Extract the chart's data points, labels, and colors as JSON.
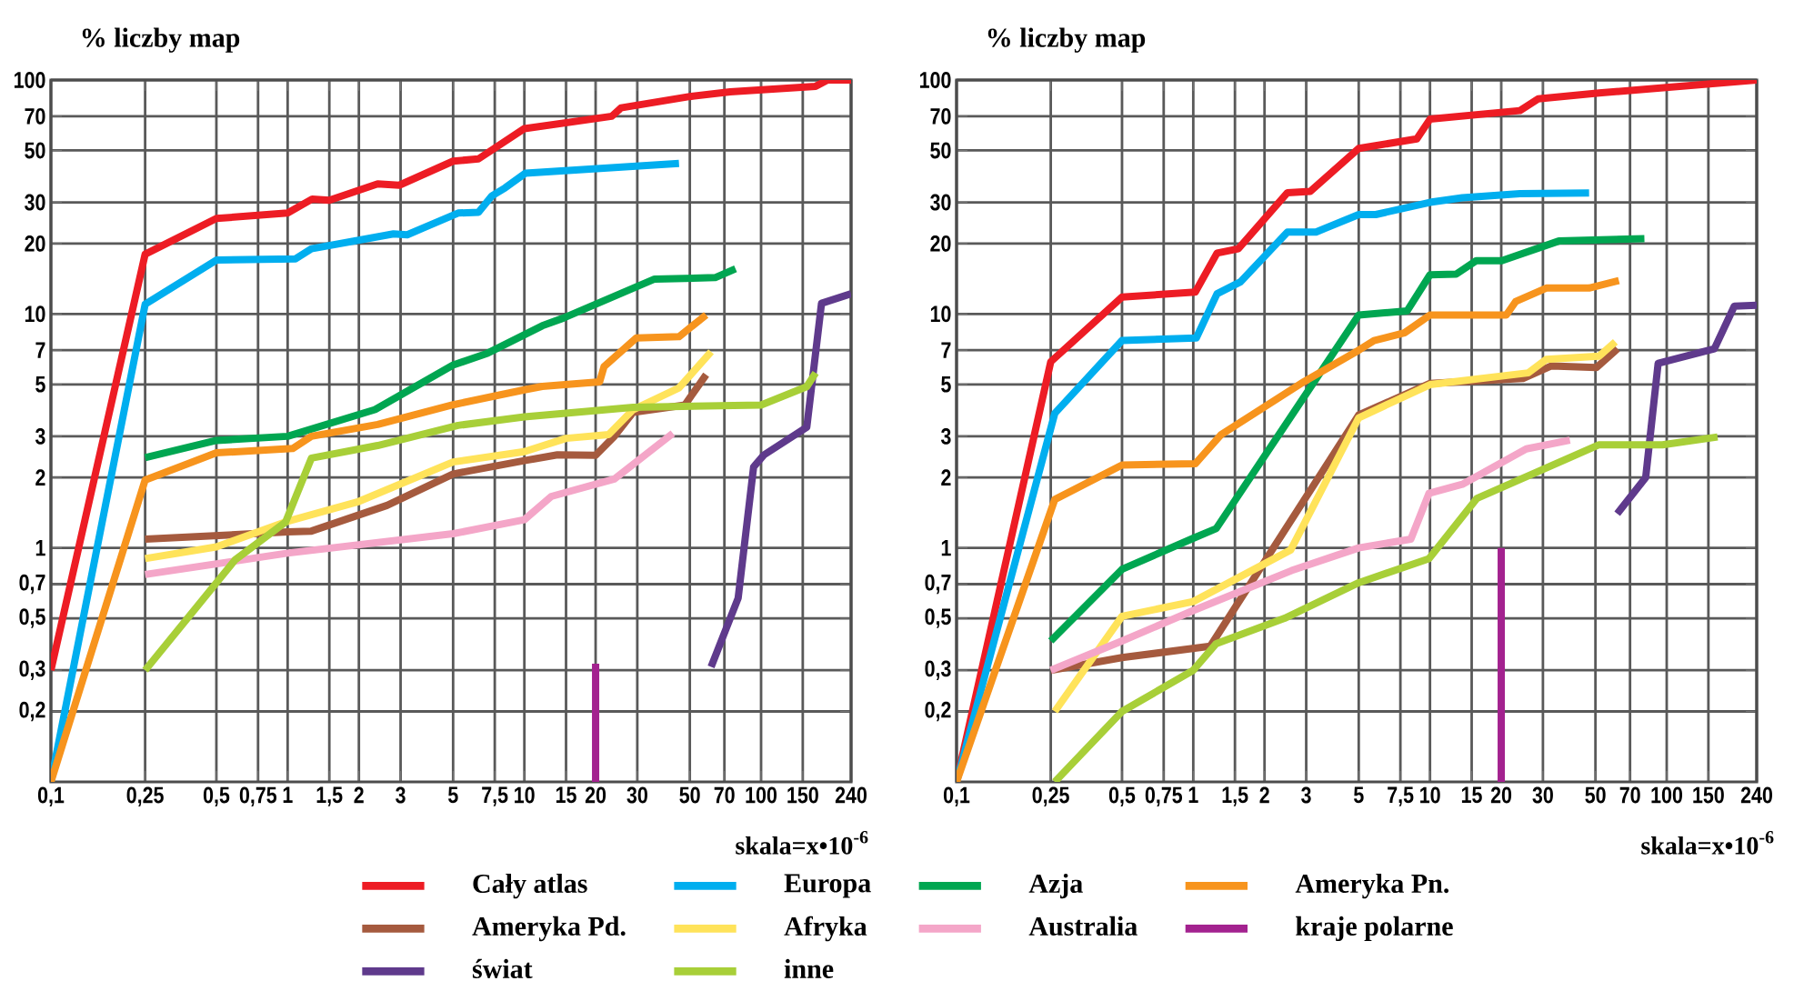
{
  "chart_data": [
    {
      "type": "line",
      "ylabel": "% liczby map",
      "xlabel": "skala=x•10$^{-6}$",
      "log": "xy",
      "grid": true,
      "legend": "bottom",
      "xlim": [
        0.1,
        240
      ],
      "ylim": [
        0.1,
        100
      ],
      "xticks": [
        {
          "value": 0.1,
          "label": "0,1"
        },
        {
          "value": 0.25,
          "label": "0,25"
        },
        {
          "value": 0.5,
          "label": "0,5"
        },
        {
          "value": 0.75,
          "label": "0,75"
        },
        1,
        {
          "value": 1.5,
          "label": "1,5"
        },
        2,
        3,
        5,
        {
          "value": 7.5,
          "label": "7,5"
        },
        10,
        15,
        20,
        30,
        50,
        70,
        100,
        150,
        240
      ],
      "yticks": [
        {
          "value": 0.2,
          "label": "0,2"
        },
        {
          "value": 0.3,
          "label": "0,3"
        },
        {
          "value": 0.5,
          "label": "0,5"
        },
        {
          "value": 0.7,
          "label": "0,7"
        },
        1,
        2,
        3,
        5,
        7,
        10,
        20,
        30,
        50,
        70,
        100
      ],
      "series": [
        {
          "name": "Cały atlas",
          "color": "#ed1c24",
          "x": [
            0.1,
            0.25,
            0.5,
            1,
            1.27,
            1.5,
            2.4,
            2.96,
            5,
            6.4,
            10,
            23.4,
            25.6,
            50,
            74,
            170,
            191,
            240
          ],
          "values": [
            0.3,
            18,
            25.6,
            27,
            31,
            30.6,
            36,
            35.5,
            45,
            46,
            62,
            70,
            76,
            85,
            89,
            94,
            100,
            100
          ]
        },
        {
          "name": "Europa",
          "color": "#00aeef",
          "x": [
            0.1,
            0.25,
            0.5,
            1.08,
            1.26,
            2.8,
            3.2,
            5.25,
            6.4,
            7.3,
            8.3,
            10.1,
            45
          ],
          "values": [
            0.1,
            11,
            17,
            17.2,
            19,
            22,
            21.8,
            27,
            27.2,
            32,
            34.6,
            40,
            44
          ]
        },
        {
          "name": "Azja",
          "color": "#00a651",
          "x": [
            0.25,
            0.5,
            1,
            2.34,
            5,
            7,
            11.9,
            14.6,
            35.5,
            64,
            78
          ],
          "values": [
            2.43,
            2.88,
            3.0,
            3.9,
            6.05,
            6.8,
            8.9,
            9.6,
            14.1,
            14.3,
            15.6
          ]
        },
        {
          "name": "Ameryka Pn.",
          "color": "#f7941d",
          "x": [
            0.1,
            0.25,
            0.5,
            1.05,
            1.26,
            2.4,
            5,
            10,
            11.9,
            20.8,
            21.7,
            29.7,
            45,
            58.6
          ],
          "values": [
            0.1,
            1.95,
            2.55,
            2.66,
            3.0,
            3.37,
            4.09,
            4.74,
            4.9,
            5.13,
            5.95,
            7.9,
            8.0,
            9.9
          ]
        },
        {
          "name": "Ameryka Pd.",
          "color": "#a55a3e",
          "x": [
            0.25,
            1,
            1.26,
            2.63,
            5,
            10,
            13.8,
            20,
            24,
            28.8,
            47.6,
            58.6
          ],
          "values": [
            1.09,
            1.17,
            1.18,
            1.52,
            2.07,
            2.36,
            2.5,
            2.49,
            3.0,
            3.8,
            4.08,
            5.5
          ]
        },
        {
          "name": "Afryka",
          "color": "#ffe35a",
          "x": [
            0.25,
            0.5,
            1,
            2,
            5,
            10,
            15,
            22.7,
            28.8,
            45,
            61.5
          ],
          "values": [
            0.9,
            1.01,
            1.3,
            1.58,
            2.33,
            2.58,
            2.94,
            3.05,
            3.9,
            4.83,
            6.9
          ]
        },
        {
          "name": "Australia",
          "color": "#f4a6c8",
          "x": [
            0.25,
            1,
            5,
            10,
            13,
            24,
            42.4
          ],
          "values": [
            0.77,
            0.95,
            1.15,
            1.32,
            1.66,
            1.97,
            3.09
          ]
        },
        {
          "name": "kraje polarne",
          "color": "#a3228f",
          "x": [
            20,
            20
          ],
          "values": [
            0.1,
            0.32
          ]
        },
        {
          "name": "świat",
          "color": "#5f3a8c",
          "x": [
            61.5,
            80,
            93,
            103,
            156,
            180,
            240
          ],
          "values": [
            0.31,
            0.61,
            2.22,
            2.5,
            3.28,
            11.1,
            12.2
          ]
        },
        {
          "name": "inne",
          "color": "#a8cf38",
          "x": [
            0.25,
            0.6,
            0.98,
            1.26,
            2.4,
            5.25,
            10,
            28.8,
            100,
            156,
            170
          ],
          "values": [
            0.3,
            0.89,
            1.29,
            2.42,
            2.74,
            3.34,
            3.63,
            3.99,
            4.08,
            4.89,
            5.6
          ]
        }
      ]
    },
    {
      "type": "line",
      "ylabel": "% liczby map",
      "xlabel": "skala=x•10$^{-6}$",
      "log": "xy",
      "grid": true,
      "xlim": [
        0.1,
        240
      ],
      "ylim": [
        0.1,
        100
      ],
      "xticks": [
        {
          "value": 0.1,
          "label": "0,1"
        },
        {
          "value": 0.25,
          "label": "0,25"
        },
        {
          "value": 0.5,
          "label": "0,5"
        },
        {
          "value": 0.75,
          "label": "0,75"
        },
        1,
        {
          "value": 1.5,
          "label": "1,5"
        },
        2,
        3,
        5,
        {
          "value": 7.5,
          "label": "7,5"
        },
        10,
        15,
        20,
        30,
        50,
        70,
        100,
        150,
        240
      ],
      "yticks": [
        {
          "value": 0.2,
          "label": "0,2"
        },
        {
          "value": 0.3,
          "label": "0,3"
        },
        {
          "value": 0.5,
          "label": "0,5"
        },
        {
          "value": 0.7,
          "label": "0,7"
        },
        1,
        2,
        3,
        5,
        7,
        10,
        20,
        30,
        50,
        70,
        100
      ],
      "series": [
        {
          "color": "#ed1c24",
          "x": [
            0.1,
            0.25,
            0.5,
            1.02,
            1.26,
            1.55,
            2.5,
            3.12,
            5,
            8.8,
            10,
            24,
            28.6,
            51.8,
            102,
            240
          ],
          "values": [
            0.1,
            6.25,
            11.8,
            12.4,
            18.2,
            19,
            33,
            33.4,
            51,
            56,
            68,
            74,
            83,
            88,
            93,
            100
          ]
        },
        {
          "color": "#00aeef",
          "x": [
            0.1,
            0.26,
            0.5,
            1.03,
            1.26,
            1.58,
            2.5,
            3.3,
            5,
            5.9,
            10,
            13.7,
            24,
            47
          ],
          "values": [
            0.1,
            3.76,
            7.7,
            7.9,
            12.2,
            13.7,
            22.4,
            22.4,
            26.6,
            26.6,
            30,
            31.4,
            32.7,
            32.9
          ]
        },
        {
          "color": "#00a651",
          "x": [
            0.25,
            0.5,
            1,
            1.25,
            5,
            8,
            10,
            12.9,
            15.7,
            20.1,
            35,
            80.5
          ],
          "values": [
            0.4,
            0.81,
            1.1,
            1.21,
            9.9,
            10.3,
            14.7,
            14.8,
            16.9,
            16.9,
            20.5,
            21
          ]
        },
        {
          "color": "#f7941d",
          "x": [
            0.1,
            0.26,
            0.5,
            1.02,
            1.31,
            2.94,
            5,
            5.8,
            7.8,
            10,
            21,
            23,
            31,
            47,
            62.8
          ],
          "values": [
            0.1,
            1.61,
            2.26,
            2.29,
            3.05,
            5.14,
            7.0,
            7.7,
            8.3,
            9.9,
            9.9,
            11.3,
            12.9,
            12.9,
            13.9
          ]
        },
        {
          "color": "#a55a3e",
          "x": [
            0.25,
            0.5,
            1.18,
            5,
            10,
            24.7,
            32.6,
            50.5,
            62
          ],
          "values": [
            0.3,
            0.34,
            0.38,
            3.7,
            5.05,
            5.3,
            6.0,
            5.9,
            7.1
          ]
        },
        {
          "color": "#ffe35a",
          "x": [
            0.26,
            0.5,
            1,
            2.58,
            5,
            10,
            26,
            31,
            51.8,
            60.7
          ],
          "values": [
            0.2,
            0.51,
            0.59,
            0.98,
            3.6,
            4.99,
            5.6,
            6.4,
            6.6,
            7.6
          ]
        },
        {
          "color": "#f4a6c8",
          "x": [
            0.25,
            0.5,
            1,
            2.6,
            5,
            8.3,
            9.9,
            13.7,
            25.5,
            39
          ],
          "values": [
            0.3,
            0.4,
            0.54,
            0.8,
            1.0,
            1.09,
            1.71,
            1.87,
            2.65,
            2.89
          ]
        },
        {
          "color": "#a3228f",
          "x": [
            20,
            20
          ],
          "values": [
            0.1,
            1.0
          ]
        },
        {
          "color": "#5f3a8c",
          "x": [
            61.8,
            81.5,
            92,
            159,
            193,
            240
          ],
          "values": [
            1.4,
            2.0,
            6.15,
            7.1,
            10.8,
            10.9
          ]
        },
        {
          "color": "#a8cf38",
          "x": [
            0.26,
            0.5,
            1,
            1.25,
            2.43,
            5,
            9.9,
            15.8,
            51.8,
            96,
            164
          ],
          "values": [
            0.1,
            0.2,
            0.3,
            0.39,
            0.5,
            0.71,
            0.9,
            1.63,
            2.76,
            2.76,
            2.98
          ]
        }
      ]
    }
  ]
}
